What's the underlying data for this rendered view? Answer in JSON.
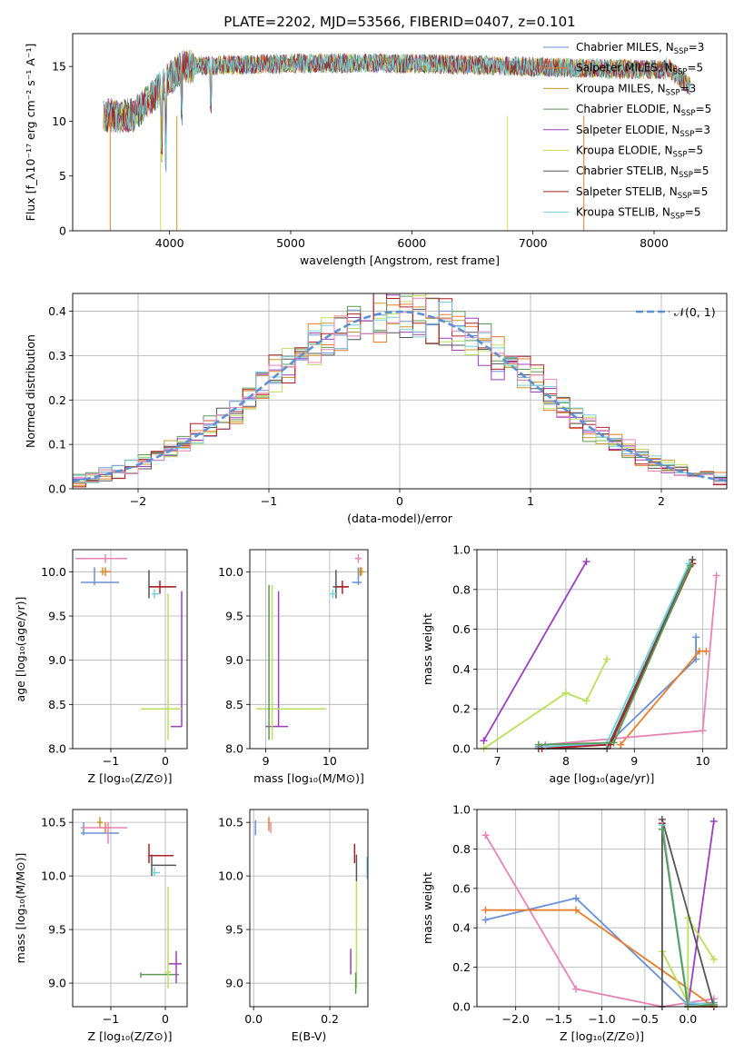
{
  "title": "PLATE=2202, MJD=53566, FIBERID=0407, z=0.101",
  "colors": {
    "Chabrier MILES": "#6a8fd6",
    "Salpeter MILES": "#e87d2a",
    "Kroupa MILES": "#c8992a",
    "Chabrier ELODIE": "#5b9a54",
    "Salpeter ELODIE": "#9b3fc0",
    "Kroupa ELODIE": "#d8e05a",
    "Chabrier STELIB": "#555555",
    "Salpeter STELIB": "#b01f24",
    "Kroupa STELIB": "#74d0d8",
    "pink": "#e882b4",
    "lime": "#b9e05a",
    "gauss": "#5b8fd6"
  },
  "chart_data": [
    {
      "id": "spectrum",
      "type": "line",
      "title": "PLATE=2202, MJD=53566, FIBERID=0407, z=0.101",
      "xlabel": "wavelength [Angstrom, rest frame]",
      "ylabel": "Flux [f_λ10^-17 erg cm^-2 s^-1 A^-1]",
      "xlim": [
        3200,
        8600
      ],
      "ylim": [
        0,
        18
      ],
      "xticks": [
        "4000",
        "5000",
        "6000",
        "7000",
        "8000"
      ],
      "yticks": [
        "0",
        "5",
        "10",
        "15"
      ],
      "x_range_data": [
        3450,
        8300
      ],
      "flux_level": [
        10.5,
        15.0
      ],
      "legend_position": "upper right",
      "series": [
        {
          "name": "Chabrier MILES, N_SSP=3",
          "label": "Chabrier MILES, N",
          "sub": "SSP",
          "tail": "=3"
        },
        {
          "name": "Salpeter MILES, N_SSP=5",
          "label": "Salpeter MILES, N",
          "sub": "SSP",
          "tail": "=5"
        },
        {
          "name": "Kroupa MILES, N_SSP=3",
          "label": "Kroupa MILES, N",
          "sub": "SSP",
          "tail": "=3"
        },
        {
          "name": "Chabrier ELODIE, N_SSP=5",
          "label": "Chabrier ELODIE, N",
          "sub": "SSP",
          "tail": "=5"
        },
        {
          "name": "Salpeter ELODIE, N_SSP=3",
          "label": "Salpeter ELODIE, N",
          "sub": "SSP",
          "tail": "=3"
        },
        {
          "name": "Kroupa ELODIE, N_SSP=5",
          "label": "Kroupa ELODIE, N",
          "sub": "SSP",
          "tail": "=5"
        },
        {
          "name": "Chabrier STELIB, N_SSP=5",
          "label": "Chabrier STELIB, N",
          "sub": "SSP",
          "tail": "=5"
        },
        {
          "name": "Salpeter STELIB, N_SSP=5",
          "label": "Salpeter STELIB, N",
          "sub": "SSP",
          "tail": "=5"
        },
        {
          "name": "Kroupa STELIB, N_SSP=5",
          "label": "Kroupa STELIB, N",
          "sub": "SSP",
          "tail": "=5"
        }
      ]
    },
    {
      "id": "residuals",
      "type": "line",
      "xlabel": "(data-model)/error",
      "ylabel": "Normed distribution",
      "xlim": [
        -2.5,
        2.5
      ],
      "ylim": [
        0,
        0.44
      ],
      "xticks": [
        "−2",
        "−1",
        "0",
        "1",
        "2"
      ],
      "yticks": [
        "0.0",
        "0.1",
        "0.2",
        "0.3",
        "0.4"
      ],
      "legend": "𝒩(0, 1)",
      "legend_position": "upper right",
      "bin_width": 0.1
    },
    {
      "id": "age-vs-Z",
      "type": "scatter",
      "xlabel": "Z [log10(Z/Z⊙)]",
      "ylabel": "age [log10(age/yr)]",
      "xlim": [
        -1.7,
        0.4
      ],
      "ylim": [
        8.0,
        10.25
      ],
      "xticks": [
        "−1",
        "0"
      ],
      "yticks": [
        "8.0",
        "8.5",
        "9.0",
        "9.5",
        "10.0"
      ],
      "points": [
        {
          "c": "Chabrier MILES",
          "x": -1.3,
          "y": 9.88,
          "xl": -1.55,
          "xh": -0.85,
          "yl": 9.85,
          "yh": 10.05
        },
        {
          "c": "Salpeter MILES",
          "x": -1.1,
          "y": 10.0,
          "xl": -1.2,
          "xh": -1.0,
          "yl": 9.95,
          "yh": 10.05
        },
        {
          "c": "Kroupa MILES",
          "x": -1.15,
          "y": 10.0,
          "xl": -1.2,
          "xh": -1.1,
          "yl": 9.96,
          "yh": 10.05
        },
        {
          "c": "pink",
          "x": -1.1,
          "y": 10.15,
          "xl": -1.65,
          "xh": -0.7,
          "yl": 10.1,
          "yh": 10.2
        },
        {
          "c": "Chabrier STELIB",
          "x": -0.3,
          "y": 9.83,
          "xl": -0.3,
          "xh": 0.15,
          "yl": 9.7,
          "yh": 10.02
        },
        {
          "c": "Salpeter STELIB",
          "x": -0.1,
          "y": 9.83,
          "xl": -0.3,
          "xh": 0.2,
          "yl": 9.75,
          "yh": 9.9
        },
        {
          "c": "Kroupa STELIB",
          "x": -0.2,
          "y": 9.75,
          "xl": -0.25,
          "xh": -0.1,
          "yl": 9.7,
          "yh": 9.8
        },
        {
          "c": "Salpeter ELODIE",
          "x": 0.3,
          "y": 8.25,
          "xl": 0.1,
          "xh": 0.3,
          "yl": 8.25,
          "yh": 9.78
        },
        {
          "c": "lime",
          "x": 0.05,
          "y": 8.45,
          "xl": -0.45,
          "xh": 0.3,
          "yl": 8.1,
          "yh": 9.75
        }
      ]
    },
    {
      "id": "age-vs-mass",
      "type": "scatter",
      "xlabel": "mass [log10(M/M⊙)]",
      "ylabel": "",
      "xlim": [
        8.75,
        10.6
      ],
      "ylim": [
        8.0,
        10.25
      ],
      "xticks": [
        "9",
        "10"
      ],
      "yticks": [
        "8.0",
        "8.5",
        "9.0",
        "9.5",
        "10.0"
      ],
      "points": [
        {
          "c": "Chabrier MILES",
          "x": 10.45,
          "y": 9.88,
          "xl": 10.35,
          "xh": 10.5,
          "yl": 9.85,
          "yh": 10.05
        },
        {
          "c": "Salpeter MILES",
          "x": 10.48,
          "y": 10.0,
          "xl": 10.45,
          "xh": 10.52,
          "yl": 9.95,
          "yh": 10.05
        },
        {
          "c": "Kroupa MILES",
          "x": 10.5,
          "y": 10.0,
          "xl": 10.45,
          "xh": 10.55,
          "yl": 9.96,
          "yh": 10.05
        },
        {
          "c": "pink",
          "x": 10.45,
          "y": 10.15,
          "xl": 10.4,
          "xh": 10.5,
          "yl": 10.1,
          "yh": 10.2
        },
        {
          "c": "Chabrier STELIB",
          "x": 10.1,
          "y": 9.83,
          "xl": 10.05,
          "xh": 10.3,
          "yl": 9.7,
          "yh": 10.02
        },
        {
          "c": "Salpeter STELIB",
          "x": 10.2,
          "y": 9.83,
          "xl": 10.1,
          "xh": 10.3,
          "yl": 9.75,
          "yh": 9.9
        },
        {
          "c": "Kroupa STELIB",
          "x": 10.05,
          "y": 9.75,
          "xl": 10.0,
          "xh": 10.1,
          "yl": 9.7,
          "yh": 9.8
        },
        {
          "c": "Salpeter ELODIE",
          "x": 9.2,
          "y": 8.25,
          "xl": 9.0,
          "xh": 9.35,
          "yl": 8.25,
          "yh": 9.78
        },
        {
          "c": "lime",
          "x": 9.1,
          "y": 8.45,
          "xl": 8.85,
          "xh": 9.95,
          "yl": 8.1,
          "yh": 9.85
        },
        {
          "c": "Chabrier ELODIE",
          "x": 9.05,
          "y": 8.45,
          "xl": 9.05,
          "xh": 9.05,
          "yl": 8.1,
          "yh": 9.85
        }
      ]
    },
    {
      "id": "massweight-vs-age",
      "type": "line",
      "xlabel": "age [log10(age/yr)]",
      "ylabel": "mass weight",
      "xlim": [
        6.7,
        10.35
      ],
      "ylim": [
        0,
        1.0
      ],
      "xticks": [
        "7",
        "8",
        "9",
        "10"
      ],
      "yticks": [
        "0.0",
        "0.2",
        "0.4",
        "0.6",
        "0.8",
        "1.0"
      ],
      "series": [
        {
          "c": "Salpeter ELODIE",
          "x": [
            6.8,
            8.3
          ],
          "y": [
            0.04,
            0.94
          ]
        },
        {
          "c": "lime",
          "x": [
            6.8,
            8.0,
            8.3,
            8.6
          ],
          "y": [
            0.0,
            0.28,
            0.24,
            0.45
          ]
        },
        {
          "c": "Chabrier MILES",
          "x": [
            7.6,
            8.6,
            9.9,
            9.9
          ],
          "y": [
            0.01,
            0.02,
            0.45,
            0.56
          ]
        },
        {
          "c": "Salpeter MILES",
          "x": [
            8.8,
            9.95,
            10.05
          ],
          "y": [
            0.02,
            0.49,
            0.49
          ]
        },
        {
          "c": "pink",
          "x": [
            7.7,
            10.0,
            10.2
          ],
          "y": [
            0.02,
            0.09,
            0.87
          ]
        },
        {
          "c": "Chabrier STELIB",
          "x": [
            7.6,
            8.6,
            9.85
          ],
          "y": [
            0.0,
            0.0,
            0.95
          ]
        },
        {
          "c": "Salpeter STELIB",
          "x": [
            7.65,
            8.65,
            9.85
          ],
          "y": [
            0.0,
            0.02,
            0.93
          ]
        },
        {
          "c": "Kroupa STELIB",
          "x": [
            7.7,
            8.6,
            9.8
          ],
          "y": [
            0.01,
            0.03,
            0.93
          ]
        },
        {
          "c": "Chabrier ELODIE",
          "x": [
            7.6,
            8.7,
            9.82
          ],
          "y": [
            0.02,
            0.03,
            0.92
          ]
        }
      ]
    },
    {
      "id": "mass-vs-Z",
      "type": "scatter",
      "xlabel": "Z [log10(Z/Z⊙)]",
      "ylabel": "mass [log10(M/M⊙)]",
      "xlim": [
        -1.7,
        0.4
      ],
      "ylim": [
        8.78,
        10.62
      ],
      "xticks": [
        "−1",
        "0"
      ],
      "yticks": [
        "9.0",
        "9.5",
        "10.0",
        "10.5"
      ],
      "points": [
        {
          "c": "Chabrier MILES",
          "x": -1.5,
          "y": 10.4,
          "xl": -1.55,
          "xh": -0.85,
          "yl": 10.38,
          "yh": 10.5
        },
        {
          "c": "Salpeter MILES",
          "x": -1.1,
          "y": 10.45,
          "xl": -1.2,
          "xh": -1.0,
          "yl": 10.4,
          "yh": 10.5
        },
        {
          "c": "Kroupa MILES",
          "x": -1.2,
          "y": 10.5,
          "xl": -1.25,
          "xh": -1.15,
          "yl": 10.45,
          "yh": 10.55
        },
        {
          "c": "pink",
          "x": -1.05,
          "y": 10.45,
          "xl": -1.55,
          "xh": -0.7,
          "yl": 10.3,
          "yh": 10.5
        },
        {
          "c": "Salpeter STELIB",
          "x": -0.3,
          "y": 10.19,
          "xl": -0.3,
          "xh": 0.15,
          "yl": 10.12,
          "yh": 10.3
        },
        {
          "c": "Chabrier STELIB",
          "x": -0.25,
          "y": 10.1,
          "xl": -0.25,
          "xh": 0.2,
          "yl": 10.0,
          "yh": 10.2
        },
        {
          "c": "Kroupa STELIB",
          "x": -0.2,
          "y": 10.03,
          "xl": -0.25,
          "xh": -0.1,
          "yl": 10.0,
          "yh": 10.08
        },
        {
          "c": "Chabrier ELODIE",
          "x": -0.45,
          "y": 9.08,
          "xl": -0.45,
          "xh": 0.25,
          "yl": 9.05,
          "yh": 9.1
        },
        {
          "c": "Salpeter ELODIE",
          "x": 0.2,
          "y": 9.18,
          "xl": 0.05,
          "xh": 0.3,
          "yl": 9.0,
          "yh": 9.3
        },
        {
          "c": "lime",
          "x": 0.05,
          "y": 9.1,
          "xl": 0.0,
          "xh": 0.1,
          "yl": 8.95,
          "yh": 9.9
        }
      ]
    },
    {
      "id": "mass-vs-EBV",
      "type": "scatter",
      "xlabel": "E(B-V)",
      "ylabel": "",
      "xlim": [
        -0.01,
        0.3
      ],
      "ylim": [
        8.78,
        10.62
      ],
      "xticks": [
        "0.0",
        "0.2"
      ],
      "yticks": [
        "9.0",
        "9.5",
        "10.0",
        "10.5"
      ],
      "points": [
        {
          "c": "Chabrier MILES",
          "x": 0.005,
          "y": 10.45,
          "xl": 0.005,
          "xh": 0.005,
          "yl": 10.38,
          "yh": 10.52
        },
        {
          "c": "Salpeter MILES",
          "x": 0.04,
          "y": 10.48,
          "xl": 0.04,
          "xh": 0.04,
          "yl": 10.42,
          "yh": 10.55
        },
        {
          "c": "pink",
          "x": 0.045,
          "y": 10.45,
          "xl": 0.045,
          "xh": 0.045,
          "yl": 10.4,
          "yh": 10.5
        },
        {
          "c": "Salpeter STELIB",
          "x": 0.265,
          "y": 10.2,
          "xl": 0.265,
          "xh": 0.265,
          "yl": 10.12,
          "yh": 10.3
        },
        {
          "c": "Chabrier STELIB",
          "x": 0.27,
          "y": 10.1,
          "xl": 0.27,
          "xh": 0.27,
          "yl": 9.95,
          "yh": 10.2
        },
        {
          "c": "Kroupa STELIB",
          "x": 0.298,
          "y": 10.08,
          "xl": 0.298,
          "xh": 0.298,
          "yl": 9.97,
          "yh": 10.18
        },
        {
          "c": "Salpeter ELODIE",
          "x": 0.255,
          "y": 9.18,
          "xl": 0.255,
          "xh": 0.255,
          "yl": 9.08,
          "yh": 9.32
        },
        {
          "c": "lime",
          "x": 0.27,
          "y": 9.3,
          "xl": 0.27,
          "xh": 0.27,
          "yl": 8.95,
          "yh": 9.95
        },
        {
          "c": "Chabrier ELODIE",
          "x": 0.268,
          "y": 9.0,
          "xl": 0.268,
          "xh": 0.268,
          "yl": 8.9,
          "yh": 9.1
        }
      ]
    },
    {
      "id": "massweight-vs-Z",
      "type": "line",
      "xlabel": "Z [log10(Z/Z⊙)]",
      "ylabel": "mass weight",
      "xlim": [
        -2.45,
        0.45
      ],
      "ylim": [
        0,
        1.0
      ],
      "xticks": [
        "−2.0",
        "−1.5",
        "−1.0",
        "−0.5",
        "0.0"
      ],
      "yticks": [
        "0.0",
        "0.2",
        "0.4",
        "0.6",
        "0.8",
        "1.0"
      ],
      "series": [
        {
          "c": "pink",
          "x": [
            -2.35,
            -1.3,
            -0.3,
            0.3
          ],
          "y": [
            0.87,
            0.09,
            0.0,
            0.04
          ]
        },
        {
          "c": "Chabrier MILES",
          "x": [
            -2.35,
            -1.3,
            0.0,
            0.3
          ],
          "y": [
            0.44,
            0.55,
            0.01,
            0.02
          ]
        },
        {
          "c": "Salpeter MILES",
          "x": [
            -2.35,
            -1.3,
            0.3
          ],
          "y": [
            0.49,
            0.49,
            0.0
          ]
        },
        {
          "c": "Salpeter ELODIE",
          "x": [
            0.0,
            0.3
          ],
          "y": [
            0.0,
            0.94
          ]
        },
        {
          "c": "lime",
          "x": [
            -0.3,
            0.0,
            0.0,
            0.3
          ],
          "y": [
            0.28,
            0.02,
            0.45,
            0.24
          ]
        },
        {
          "c": "Chabrier STELIB",
          "x": [
            -0.3,
            -0.3,
            0.3
          ],
          "y": [
            0.0,
            0.95,
            0.0
          ]
        },
        {
          "c": "Salpeter STELIB",
          "x": [
            -0.3,
            0.0,
            0.3
          ],
          "y": [
            0.93,
            0.0,
            0.0
          ]
        },
        {
          "c": "Kroupa STELIB",
          "x": [
            -0.3,
            0.0,
            0.3
          ],
          "y": [
            0.92,
            0.02,
            0.01
          ]
        },
        {
          "c": "Chabrier ELODIE",
          "x": [
            -0.3,
            0.0,
            0.3
          ],
          "y": [
            0.9,
            0.0,
            0.01
          ]
        }
      ]
    }
  ]
}
